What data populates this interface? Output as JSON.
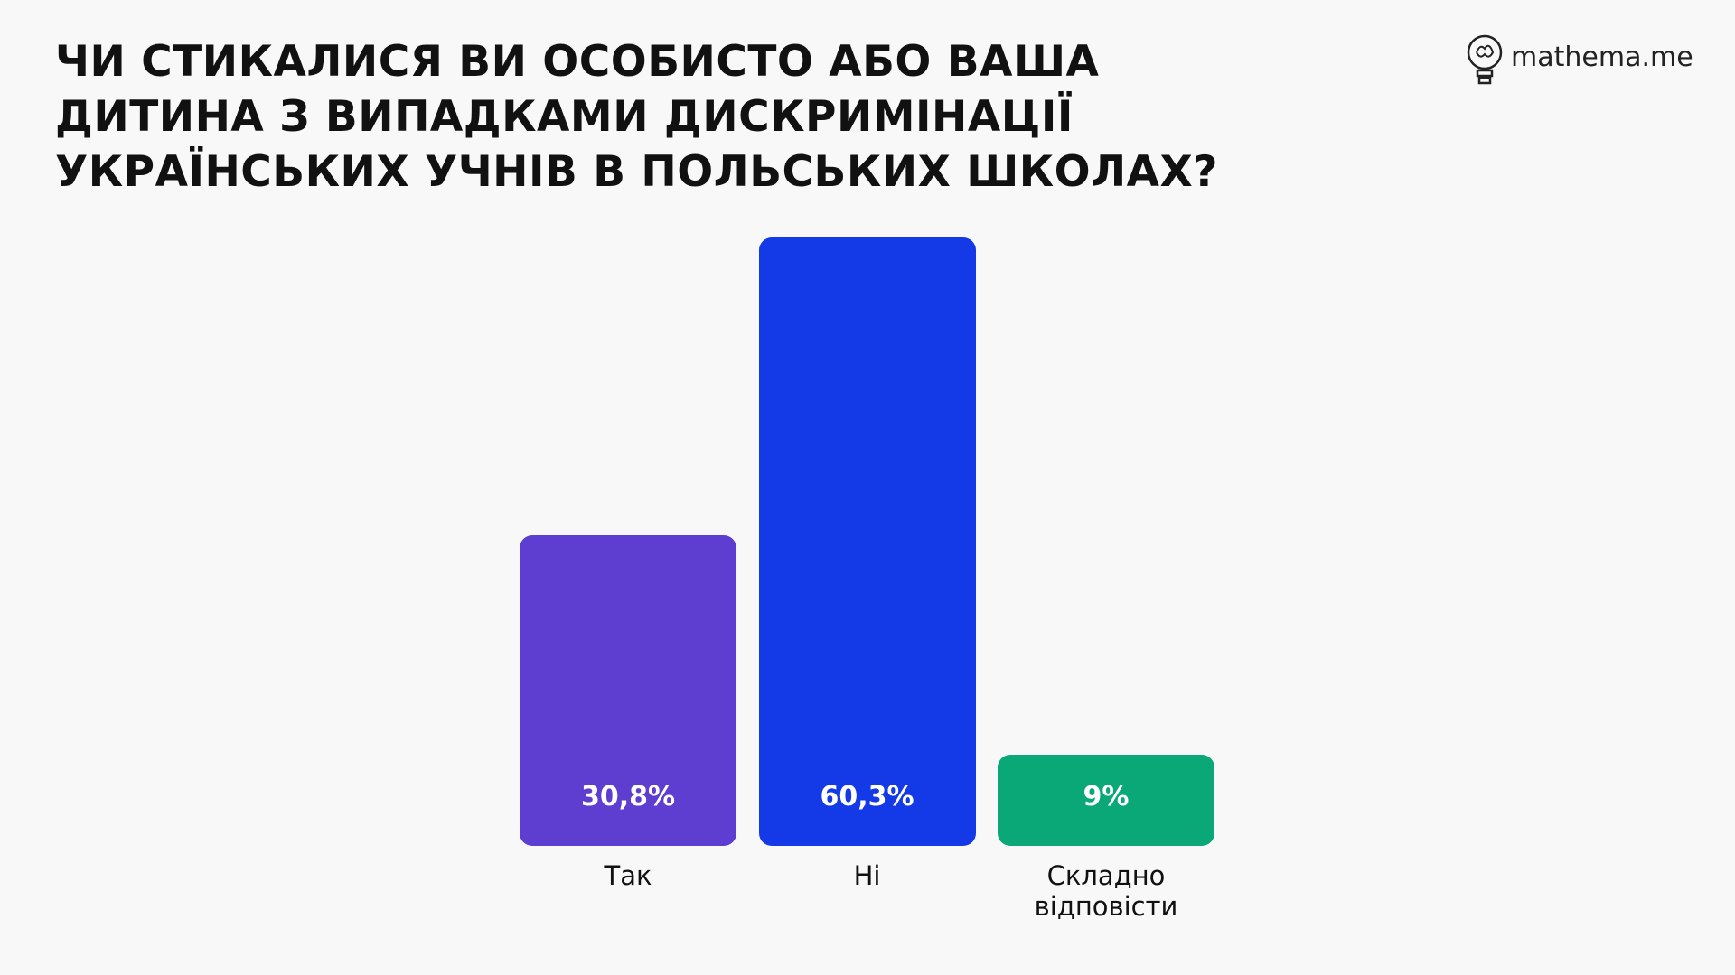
{
  "chart_data": {
    "type": "bar",
    "title": "ЧИ СТИКАЛИСЯ ВИ ОСОБИСТО АБО ВАША ДИТИНА З ВИПАДКАМИ ДИСКРИМІНАЦІЇ УКРАЇНСЬКИХ УЧНІВ В ПОЛЬСЬКИХ ШКОЛАХ?",
    "brand": "mathema.me",
    "categories": [
      "Так",
      "Ні",
      "Складно відповісти"
    ],
    "values": [
      30.8,
      60.3,
      9
    ],
    "value_labels": [
      "30,8%",
      "60,3%",
      "9%"
    ],
    "colors": [
      "#5d3ed0",
      "#1439e6",
      "#0aa877"
    ]
  }
}
